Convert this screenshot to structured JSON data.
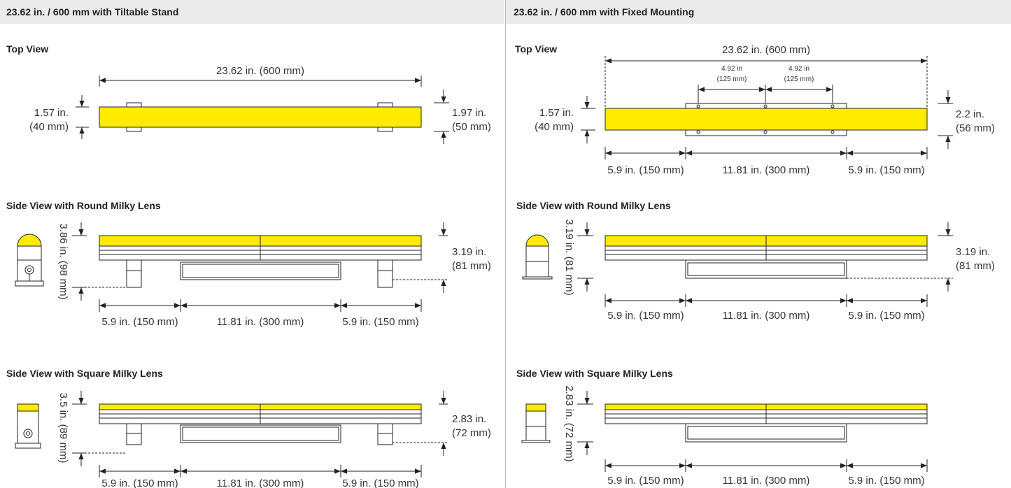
{
  "colors": {
    "yellow": "#ffeb00",
    "header_bg": "#ebebeb",
    "line": "#222222"
  },
  "left": {
    "header": "23.62 in. / 600 mm with Tiltable Stand",
    "top_view": {
      "title": "Top View",
      "overall": "23.62 in. (600 mm)",
      "left_h1": "1.57 in.",
      "left_h2": "(40 mm)",
      "right_h1": "1.97 in.",
      "right_h2": "(50 mm)"
    },
    "side_round": {
      "title": "Side View with Round Milky Lens",
      "vert": "3.86 in. (98 mm)",
      "right_h1": "3.19 in.",
      "right_h2": "(81 mm)",
      "seg1": "5.9 in. (150 mm)",
      "seg2": "11.81 in. (300 mm)",
      "seg3": "5.9 in. (150 mm)"
    },
    "side_square": {
      "title": "Side View with Square Milky Lens",
      "vert": "3.5 in. (89 mm)",
      "right_h1": "2.83 in.",
      "right_h2": "(72 mm)",
      "seg1": "5.9 in. (150 mm)",
      "seg2": "11.81 in. (300 mm)",
      "seg3": "5.9 in. (150 mm)"
    }
  },
  "right": {
    "header": "23.62 in. / 600 mm with Fixed Mounting",
    "top_view": {
      "title": "Top View",
      "overall": "23.62 in. (600 mm)",
      "sub1a": "4.92 in",
      "sub1b": "(125 mm)",
      "sub2a": "4.92 in",
      "sub2b": "(125 mm)",
      "left_h1": "1.57 in.",
      "left_h2": "(40 mm)",
      "right_h1": "2.2 in.",
      "right_h2": "(56 mm)",
      "seg1": "5.9 in. (150 mm)",
      "seg2": "11.81 in. (300 mm)",
      "seg3": "5.9 in. (150 mm)"
    },
    "side_round": {
      "title": "Side View with Round Milky Lens",
      "vert": "3.19 in. (81 mm)",
      "right_h1": "3.19 in.",
      "right_h2": "(81 mm)",
      "seg1": "5.9 in. (150 mm)",
      "seg2": "11.81 in. (300 mm)",
      "seg3": "5.9 in. (150 mm)"
    },
    "side_square": {
      "title": "Side View with Square Milky Lens",
      "vert": "2.83 in. (72 mm)",
      "seg1": "5.9 in. (150 mm)",
      "seg2": "11.81 in. (300 mm)",
      "seg3": "5.9 in. (150 mm)"
    }
  }
}
